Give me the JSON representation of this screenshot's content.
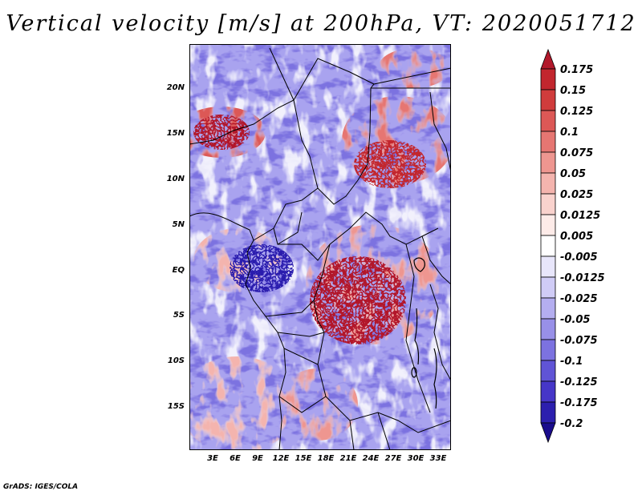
{
  "title": "Vertical velocity [m/s] at 200hPa, VT: 2020051712",
  "credit": "GrADS: IGES/COLA",
  "map": {
    "lat_labels": [
      "20N",
      "15N",
      "10N",
      "5N",
      "EQ",
      "5S",
      "10S",
      "15S"
    ],
    "lon_labels": [
      "3E",
      "6E",
      "9E",
      "12E",
      "15E",
      "18E",
      "21E",
      "24E",
      "27E",
      "30E",
      "33E"
    ]
  },
  "colorbar": {
    "labels": [
      "0.175",
      "0.15",
      "0.125",
      "0.1",
      "0.075",
      "0.05",
      "0.025",
      "0.0125",
      "0.005",
      "-0.005",
      "-0.0125",
      "-0.025",
      "-0.05",
      "-0.075",
      "-0.1",
      "-0.125",
      "-0.175",
      "-0.2"
    ],
    "colors": [
      "#b2182b",
      "#c2262e",
      "#d03c3c",
      "#dc5856",
      "#e67672",
      "#ee9690",
      "#f4b4ae",
      "#f9d2cd",
      "#fdebe8",
      "#ffffff",
      "#e8e6fb",
      "#d0ccf6",
      "#b4aef0",
      "#9890e8",
      "#7c72e0",
      "#6054d6",
      "#4636c8",
      "#2c1fae",
      "#1a0c8c"
    ]
  }
}
